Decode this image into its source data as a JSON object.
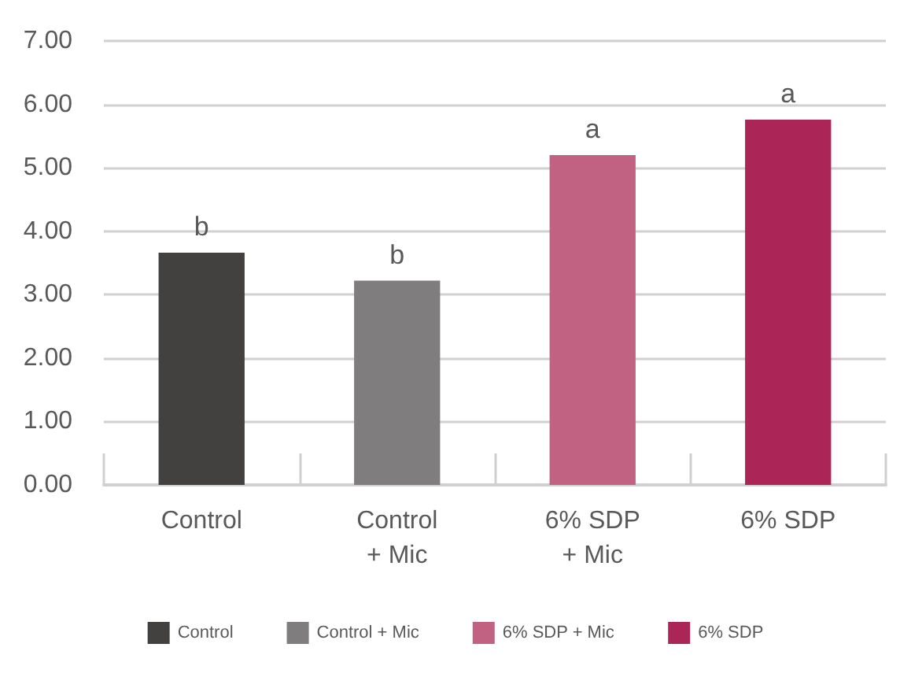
{
  "chart_data": {
    "type": "bar",
    "categories": [
      "Control",
      "Control\n+ Mic",
      "6% SDP\n+ Mic",
      "6% SDP"
    ],
    "series": [
      {
        "name": "Control",
        "color": "#434140",
        "values": [
          3.66,
          null,
          null,
          null
        ]
      },
      {
        "name": "Control + Mic",
        "color": "#7f7d7e",
        "values": [
          null,
          3.22,
          null,
          null
        ]
      },
      {
        "name": "6% SDP + Mic",
        "color": "#c26283",
        "values": [
          null,
          null,
          5.2,
          null
        ]
      },
      {
        "name": "6% SDP",
        "color": "#ab2656",
        "values": [
          null,
          null,
          null,
          5.76
        ]
      }
    ],
    "ylim": [
      0,
      7
    ],
    "yticks": [
      {
        "value": 0,
        "label": "0.00"
      },
      {
        "value": 1,
        "label": "1.00"
      },
      {
        "value": 2,
        "label": "2.00"
      },
      {
        "value": 3,
        "label": "3.00"
      },
      {
        "value": 4,
        "label": "4.00"
      },
      {
        "value": 5,
        "label": "5.00"
      },
      {
        "value": 6,
        "label": "6.00"
      },
      {
        "value": 7,
        "label": "7.00"
      }
    ],
    "grid": "y",
    "legend": "bottom",
    "annotations": [
      {
        "text": "b",
        "x": "Control",
        "y": 3.66
      },
      {
        "text": "b",
        "x": "Control\n+ Mic",
        "y": 3.22
      },
      {
        "text": "a",
        "x": "6% SDP\n+ Mic",
        "y": 5.2
      },
      {
        "text": "a",
        "x": "6% SDP",
        "y": 5.76
      }
    ]
  }
}
